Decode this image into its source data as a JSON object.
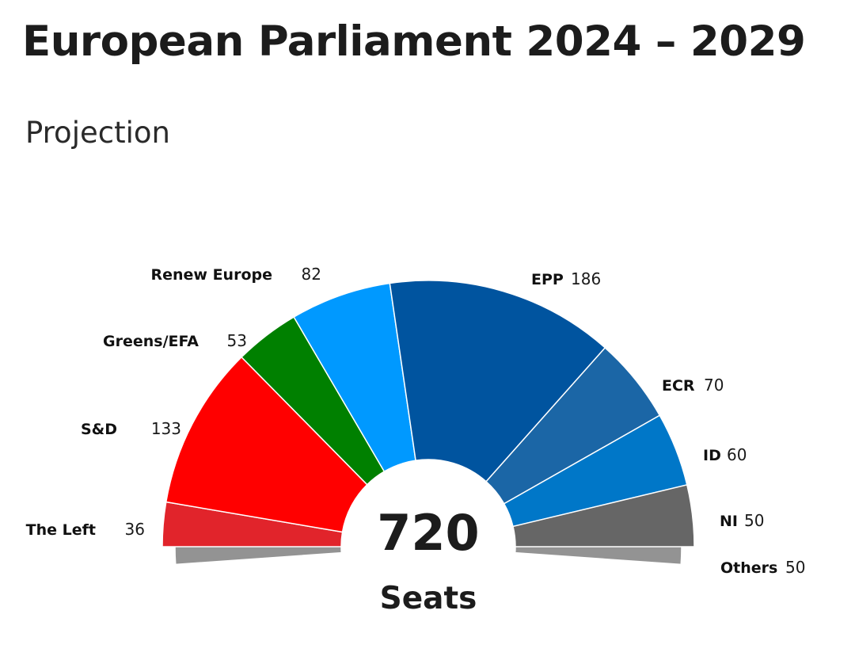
{
  "chart_data": {
    "type": "pie",
    "subtype": "parliament-semicircle",
    "title": "European Parliament 2024 – 2029",
    "subtitle": "Projection",
    "total": "720",
    "total_label": "Seats",
    "series": [
      {
        "name": "Others",
        "value": 50,
        "color": "#939393"
      },
      {
        "name": "The Left",
        "value": 36,
        "color": "#e1242b"
      },
      {
        "name": "S&D",
        "value": 133,
        "color": "#ff0000"
      },
      {
        "name": "Greens/EFA",
        "value": 53,
        "color": "#008000"
      },
      {
        "name": "Renew Europe",
        "value": 82,
        "color": "#0099ff"
      },
      {
        "name": "EPP",
        "value": 186,
        "color": "#00549f"
      },
      {
        "name": "ECR",
        "value": 70,
        "color": "#1b66a6"
      },
      {
        "name": "ID",
        "value": 60,
        "color": "#0077c8"
      },
      {
        "name": "NI",
        "value": 50,
        "color": "#666666"
      }
    ],
    "legend": "labels-around-arc"
  }
}
